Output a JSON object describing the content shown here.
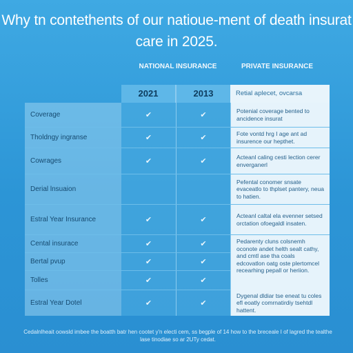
{
  "title": "Why tn contethents of our natioue-ment of death insurat care in 2025.",
  "columns": {
    "national": "NATIONAL INSURANCE",
    "private": "PRIVATE INSURANCE",
    "years": [
      "2021",
      "2013"
    ],
    "private_header": "Retial aplecet, ovcarsa"
  },
  "rows": [
    {
      "label": "Coverage",
      "national_2021": "✔",
      "national_2013": "✔",
      "private": "Potenial coverage bented to ancidence insurat"
    },
    {
      "label": "Tholdngy ingranse",
      "national_2021": "✔",
      "national_2013": "✔",
      "private": "Fote vontd hrg I age ant ad insurence our hepthet."
    },
    {
      "label": "Cowrages",
      "national_2021": "✔",
      "national_2013": "✔",
      "private": "Acteanl caling cesti lection cerer enverganerl"
    },
    {
      "label": "Derial lnsuaion",
      "national_2021": "",
      "national_2013": "",
      "private": "Pefental conomer snsate evaceatlo to thplset pantery, neua to hatien."
    },
    {
      "label": "Estral Year Insurance",
      "national_2021": "✔",
      "national_2013": "✔",
      "private": "Acteanl caltal ela evenner setsed orctation ofoegaldl insaten."
    },
    {
      "label": "Cental insurace",
      "national_2021": "✔",
      "national_2013": "✔",
      "private": "Pedarenty cluns colsnemh oconote andet helth sealt cathy, and cmtl ase tha coals edcovatlon oatg oste plertomcel recearhing pepall or heriion."
    },
    {
      "label": "Bertal pvup",
      "national_2021": "✔",
      "national_2013": "✔",
      "private": ""
    },
    {
      "label": "Tolles",
      "national_2021": "✔",
      "national_2013": "✔",
      "private": ""
    },
    {
      "label": "Estral Year Dotel",
      "national_2021": "✔",
      "national_2013": "✔",
      "private": "Dygenal dldiar tse eneat tu coles efl eoatly comrnatirdiy tsehtdl hattent."
    }
  ],
  "footer": "Cedalnlheait oowsld imbee the boatth batr hen cootet y'n electi cem, ss begple of 14 how to the breceale I of lagred the tealthe lase tinodiae so ar 2UTy cedat."
}
